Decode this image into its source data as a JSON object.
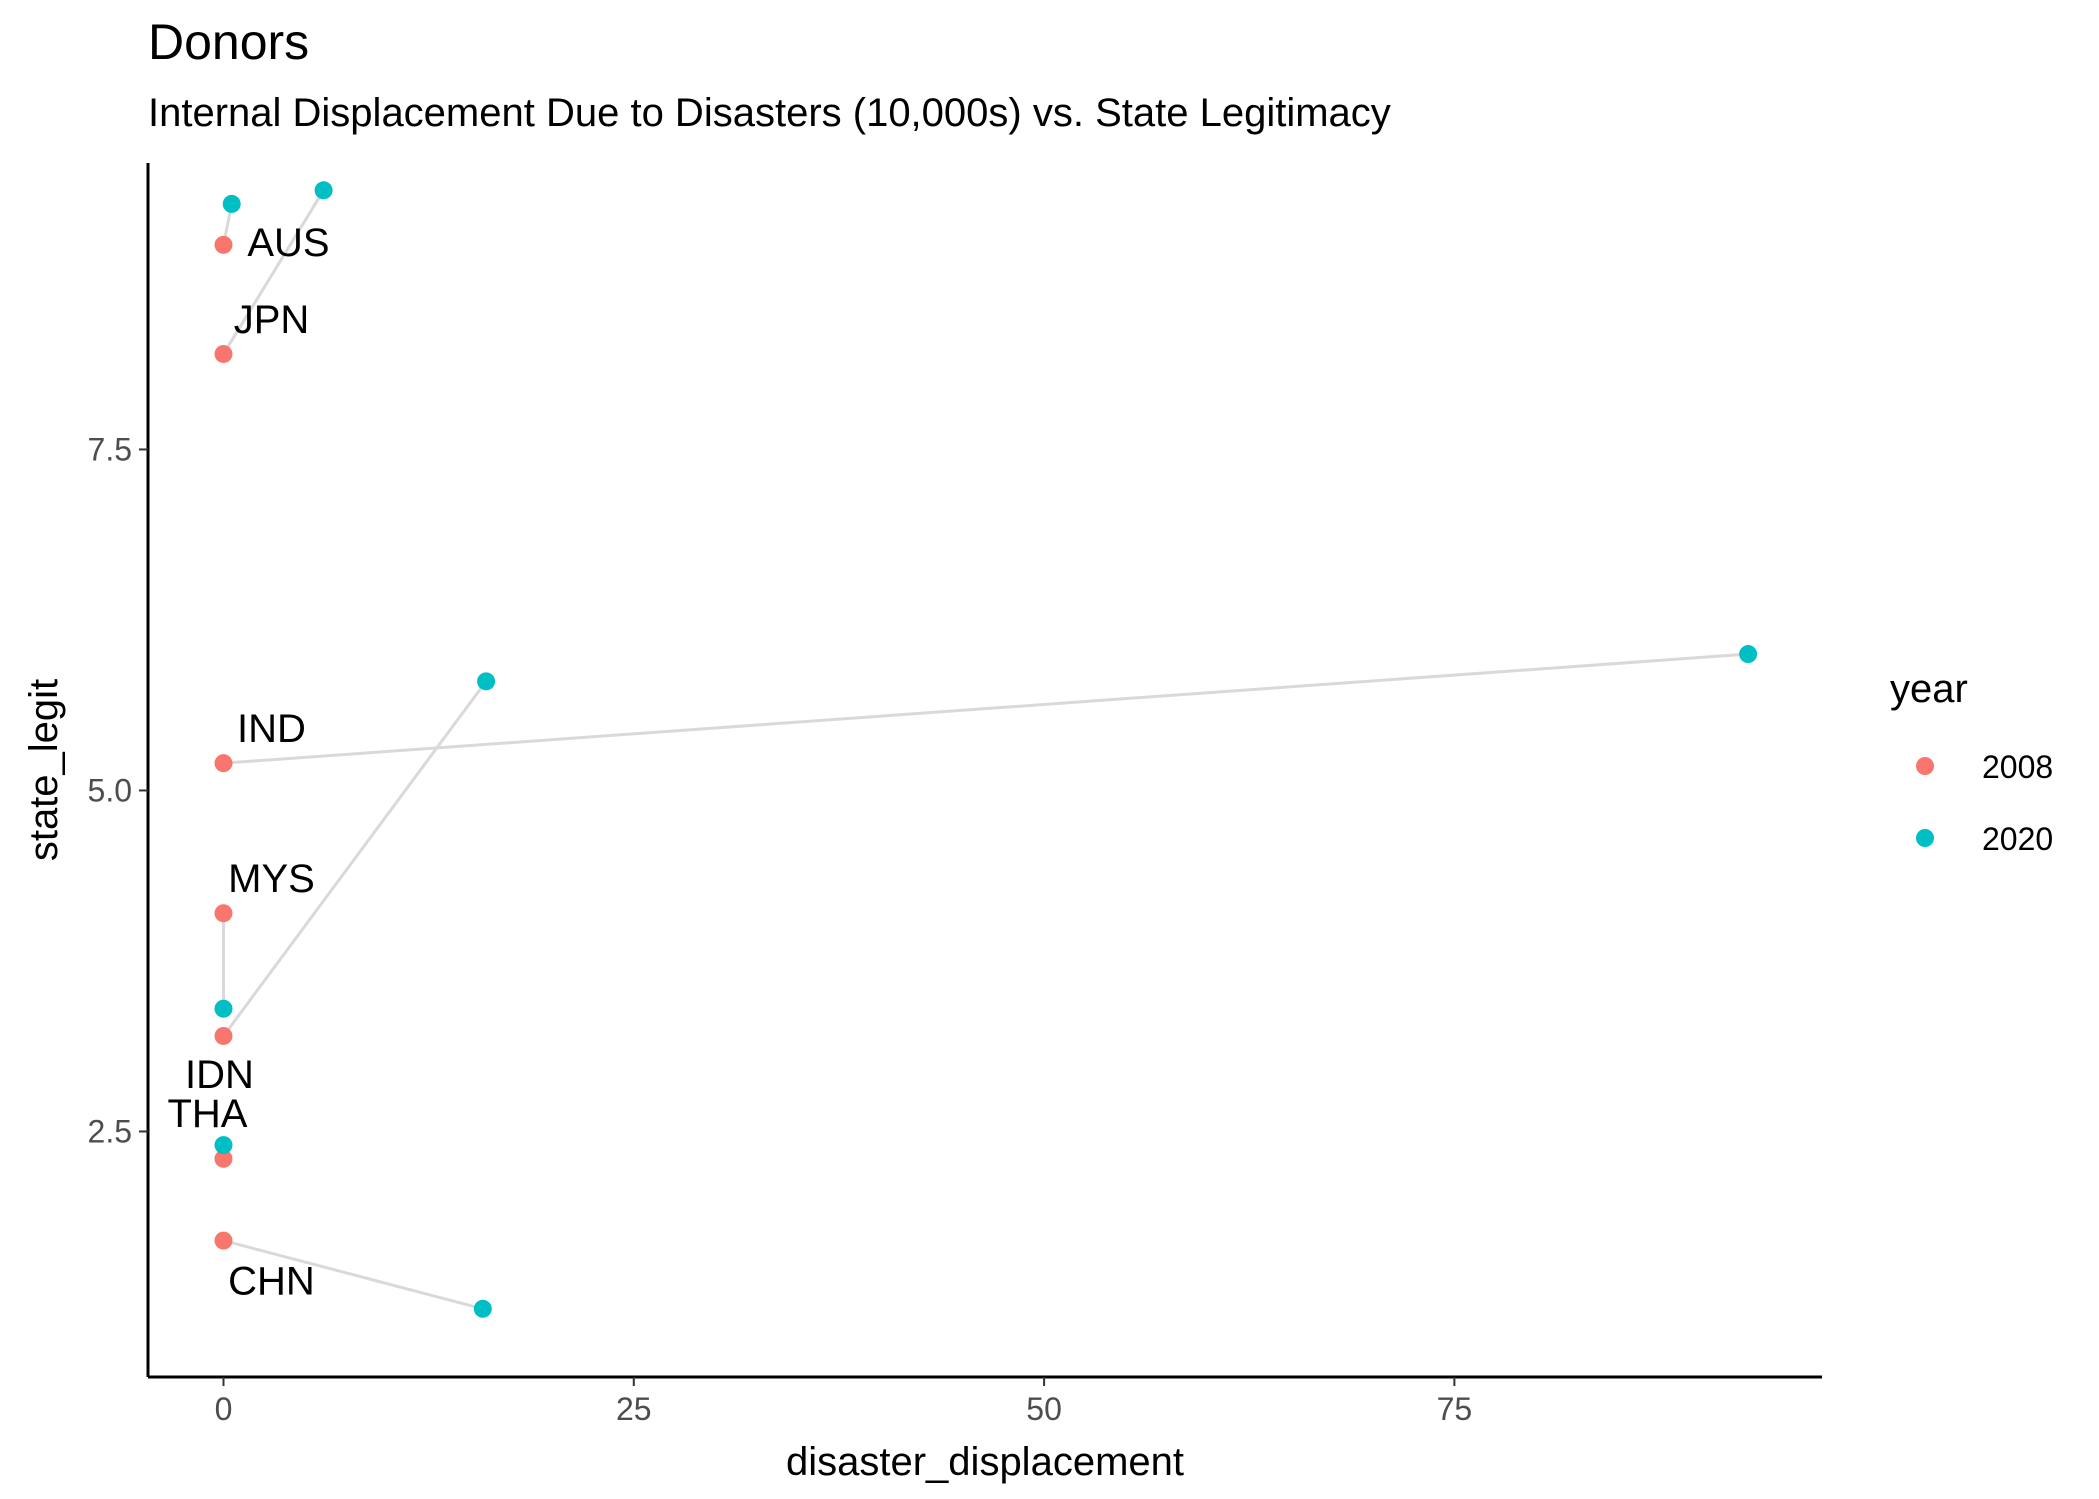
{
  "chart_data": {
    "type": "scatter",
    "title": "Donors",
    "subtitle": "Internal Displacement Due to Disasters (10,000s) vs. State Legitimacy",
    "xlabel": "disaster_displacement",
    "ylabel": "state_legit",
    "xlim": [
      -4.6,
      97.4
    ],
    "ylim": [
      0.7,
      9.6
    ],
    "x_ticks": [
      0,
      25,
      50,
      75
    ],
    "x_tick_labels": [
      "0",
      "25",
      "50",
      "75"
    ],
    "y_ticks": [
      2.5,
      5.0,
      7.5
    ],
    "y_tick_labels": [
      "2.5",
      "5.0",
      "7.5"
    ],
    "grid": false,
    "legend": {
      "title": "year",
      "position": "right",
      "entries": [
        {
          "label": "2008",
          "color": "#F8766D"
        },
        {
          "label": "2020",
          "color": "#00BFC4"
        }
      ]
    },
    "connector_color": "#d9d9d9",
    "countries": [
      {
        "label": "AUS",
        "points": [
          {
            "year": "2008",
            "x": 0.0,
            "y": 9.0
          },
          {
            "year": "2020",
            "x": 0.5,
            "y": 9.3
          }
        ]
      },
      {
        "label": "JPN",
        "points": [
          {
            "year": "2008",
            "x": 0.0,
            "y": 8.2
          },
          {
            "year": "2020",
            "x": 6.1,
            "y": 9.4
          }
        ]
      },
      {
        "label": "IND",
        "points": [
          {
            "year": "2008",
            "x": 0.0,
            "y": 5.2
          },
          {
            "year": "2020",
            "x": 92.9,
            "y": 6.0
          }
        ]
      },
      {
        "label": "MYS",
        "points": [
          {
            "year": "2008",
            "x": 0.0,
            "y": 4.1
          },
          {
            "year": "2020",
            "x": 0.0,
            "y": 3.4
          }
        ]
      },
      {
        "label": "IDN",
        "points": [
          {
            "year": "2008",
            "x": 0.0,
            "y": 3.2
          },
          {
            "year": "2020",
            "x": 16.0,
            "y": 5.8
          }
        ]
      },
      {
        "label": "THA",
        "points": [
          {
            "year": "2008",
            "x": 0.0,
            "y": 2.3
          },
          {
            "year": "2020",
            "x": 0.0,
            "y": 2.4
          }
        ]
      },
      {
        "label": "CHN",
        "points": [
          {
            "year": "2008",
            "x": 0.0,
            "y": 1.7
          },
          {
            "year": "2020",
            "x": 15.8,
            "y": 1.2
          }
        ]
      }
    ]
  }
}
